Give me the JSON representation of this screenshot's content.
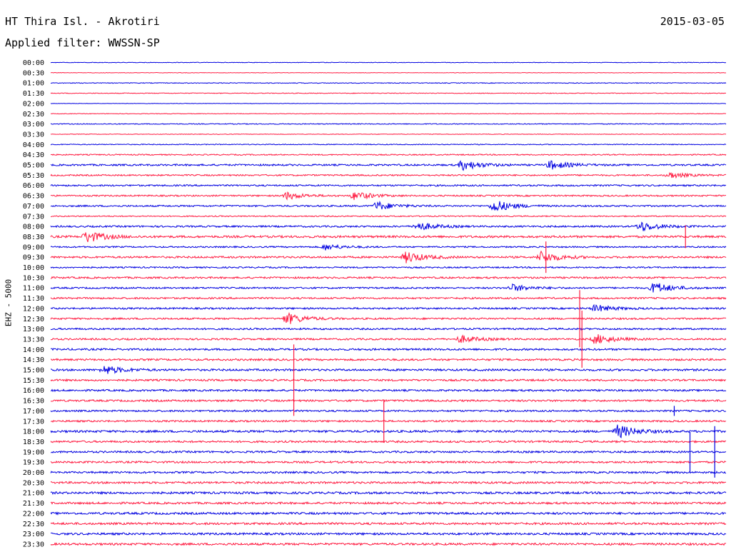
{
  "header": {
    "title": "HT Thira Isl. - Akrotiri",
    "date": "2015-03-05",
    "filter": "Applied filter: WWSSN-SP"
  },
  "colors": {
    "line_a": "#0000e0",
    "line_b": "#ff1a40",
    "background": "#ffffff"
  },
  "chart_data": {
    "type": "line",
    "subtype": "helicorder",
    "ylabel": "EHZ - 5000",
    "row_labels": [
      "00:00",
      "00:30",
      "01:00",
      "01:30",
      "02:00",
      "02:30",
      "03:00",
      "03:30",
      "04:00",
      "04:30",
      "05:00",
      "05:30",
      "06:00",
      "06:30",
      "07:00",
      "07:30",
      "08:00",
      "08:30",
      "09:00",
      "09:30",
      "10:00",
      "10:30",
      "11:00",
      "11:30",
      "12:00",
      "12:30",
      "13:00",
      "13:30",
      "14:00",
      "14:30",
      "15:00",
      "15:30",
      "16:00",
      "16:30",
      "17:00",
      "17:30",
      "18:00",
      "18:30",
      "19:00",
      "19:30",
      "20:00",
      "20:30",
      "21:00",
      "21:30",
      "22:00",
      "22:30",
      "23:00",
      "23:30"
    ],
    "row_colors": [
      "blue",
      "red"
    ],
    "window_minutes": 30,
    "noise_levels": [
      0.4,
      0.3,
      0.5,
      0.5,
      0.3,
      0.4,
      0.6,
      0.4,
      0.6,
      0.8,
      1.2,
      1.0,
      1.1,
      1.0,
      1.1,
      0.8,
      1.2,
      1.5,
      1.0,
      1.3,
      1.0,
      1.2,
      1.1,
      1.2,
      1.2,
      1.2,
      1.2,
      1.2,
      1.3,
      1.3,
      1.4,
      1.3,
      1.3,
      1.3,
      1.2,
      1.2,
      1.5,
      1.3,
      1.3,
      1.3,
      1.3,
      1.4,
      1.5,
      1.4,
      1.5,
      1.5,
      1.5,
      1.5
    ],
    "events": [
      {
        "row": 10,
        "minute": 18.3,
        "amplitude": 7
      },
      {
        "row": 10,
        "minute": 22.2,
        "amplitude": 6
      },
      {
        "row": 11,
        "minute": 27.5,
        "amplitude": 4
      },
      {
        "row": 13,
        "minute": 10.5,
        "amplitude": 5
      },
      {
        "row": 13,
        "minute": 13.5,
        "amplitude": 6
      },
      {
        "row": 14,
        "minute": 14.5,
        "amplitude": 6
      },
      {
        "row": 14,
        "minute": 19.7,
        "amplitude": 9
      },
      {
        "row": 16,
        "minute": 16.3,
        "amplitude": 6
      },
      {
        "row": 16,
        "minute": 26.2,
        "amplitude": 7
      },
      {
        "row": 17,
        "minute": 1.6,
        "amplitude": 8
      },
      {
        "row": 18,
        "minute": 12.2,
        "amplitude": 4
      },
      {
        "row": 19,
        "minute": 15.8,
        "amplitude": 8
      },
      {
        "row": 19,
        "minute": 21.8,
        "amplitude": 8
      },
      {
        "row": 22,
        "minute": 20.5,
        "amplitude": 5
      },
      {
        "row": 22,
        "minute": 26.8,
        "amplitude": 8
      },
      {
        "row": 24,
        "minute": 24.2,
        "amplitude": 5
      },
      {
        "row": 25,
        "minute": 10.5,
        "amplitude": 8
      },
      {
        "row": 27,
        "minute": 18.2,
        "amplitude": 5
      },
      {
        "row": 27,
        "minute": 24.2,
        "amplitude": 7
      },
      {
        "row": 30,
        "minute": 2.4,
        "amplitude": 6
      },
      {
        "row": 36,
        "minute": 25.2,
        "amplitude": 9
      }
    ],
    "spikes": [
      {
        "row": 17,
        "minute": 28.2,
        "amplitude": 16
      },
      {
        "row": 19,
        "minute": 22.0,
        "amplitude": 22
      },
      {
        "row": 25,
        "minute": 23.5,
        "amplitude": 40
      },
      {
        "row": 27,
        "minute": 23.6,
        "amplitude": 40
      },
      {
        "row": 31,
        "minute": 10.8,
        "amplitude": 50
      },
      {
        "row": 34,
        "minute": 27.7,
        "amplitude": 7
      },
      {
        "row": 35,
        "minute": 14.8,
        "amplitude": 30
      },
      {
        "row": 38,
        "minute": 28.4,
        "amplitude": 28
      },
      {
        "row": 38,
        "minute": 29.5,
        "amplitude": 36
      }
    ]
  }
}
